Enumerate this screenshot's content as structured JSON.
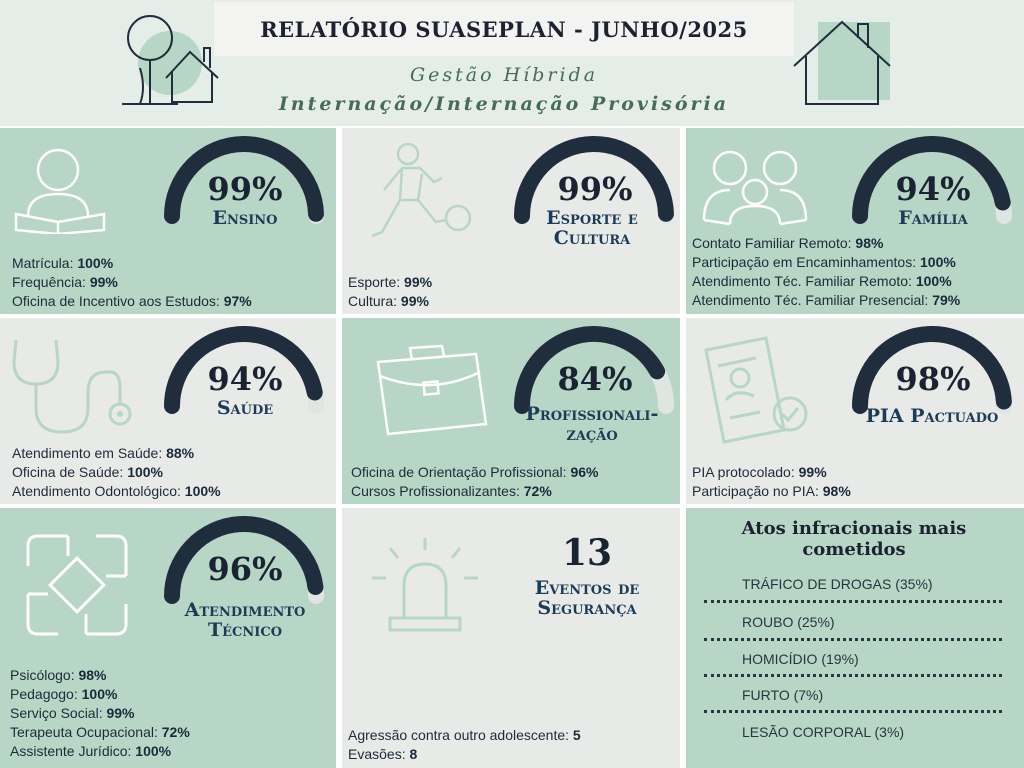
{
  "header": {
    "title": "RELATÓRIO SUASEPLAN - JUNHO/2025",
    "subtitle1": "Gestão Híbrida",
    "subtitle2": "Internação/Internação Provisória"
  },
  "colors": {
    "gauge_fill": "#1f2d3d",
    "gauge_track": "#dfe6e2",
    "green_bg": "#b7d6c6",
    "light_bg": "#e8eae8",
    "label": "#1c3b57"
  },
  "cards": {
    "ensino": {
      "icon": "reading-person-icon",
      "pct": "99%",
      "value": 0.99,
      "label": "Ensino",
      "lines": [
        {
          "k": "Matrícula: ",
          "v": "100%"
        },
        {
          "k": "Frequência: ",
          "v": "99%"
        },
        {
          "k": "Oficina de Incentivo aos Estudos: ",
          "v": "97%"
        }
      ]
    },
    "esporte": {
      "icon": "soccer-player-icon",
      "pct": "99%",
      "value": 0.99,
      "label1": "Esporte e",
      "label2": "Cultura",
      "lines": [
        {
          "k": "Esporte: ",
          "v": "99%"
        },
        {
          "k": "Cultura: ",
          "v": "99%"
        }
      ]
    },
    "familia": {
      "icon": "family-icon",
      "pct": "94%",
      "value": 0.94,
      "label": "Família",
      "lines": [
        {
          "k": "Contato Familiar Remoto: ",
          "v": "98%"
        },
        {
          "k": "Participação em Encaminhamentos: ",
          "v": "100%"
        },
        {
          "k": "Atendimento Téc. Familiar Remoto: ",
          "v": "100%"
        },
        {
          "k": "Atendimento Téc. Familiar Presencial: ",
          "v": "79%"
        }
      ]
    },
    "saude": {
      "icon": "stethoscope-icon",
      "pct": "94%",
      "value": 0.94,
      "label": "Saúde",
      "lines": [
        {
          "k": "Atendimento em Saúde: ",
          "v": "88%"
        },
        {
          "k": "Oficina de Saúde: ",
          "v": "100%"
        },
        {
          "k": "Atendimento Odontológico: ",
          "v": "100%"
        }
      ]
    },
    "prof": {
      "icon": "briefcase-icon",
      "pct": "84%",
      "value": 0.84,
      "label1": "Profissionali-",
      "label2": "zação",
      "lines": [
        {
          "k": "Oficina de Orientação Profissional: ",
          "v": "96%"
        },
        {
          "k": "Cursos Profissionalizantes: ",
          "v": "72%"
        }
      ]
    },
    "pia": {
      "icon": "document-approved-icon",
      "pct": "98%",
      "value": 0.98,
      "label": "PIA Pactuado",
      "lines": [
        {
          "k": "PIA protocolado: ",
          "v": "99%"
        },
        {
          "k": "Participação no PIA: ",
          "v": "98%"
        }
      ]
    },
    "tecnico": {
      "icon": "hands-together-icon",
      "pct": "96%",
      "value": 0.96,
      "label1": "Atendimento",
      "label2": "Técnico",
      "lines": [
        {
          "k": "Psicólogo: ",
          "v": "98%"
        },
        {
          "k": "Pedagogo: ",
          "v": "100%"
        },
        {
          "k": "Serviço Social: ",
          "v": "99%"
        },
        {
          "k": "Terapeuta Ocupacional: ",
          "v": "72%"
        },
        {
          "k": "Assistente Jurídico: ",
          "v": "100%"
        }
      ]
    },
    "seguranca": {
      "icon": "siren-icon",
      "count": "13",
      "label1": "Eventos de",
      "label2": "Segurança",
      "lines": [
        {
          "k": "Agressão contra outro adolescente: ",
          "v": "5"
        },
        {
          "k": "Evasões: ",
          "v": "8"
        }
      ]
    }
  },
  "atos": {
    "title1": "Atos infracionais mais",
    "title2": "cometidos",
    "items": [
      "TRÁFICO DE DROGAS (35%)",
      "ROUBO (25%)",
      "HOMICÍDIO (19%)",
      "FURTO (7%)",
      "LESÃO CORPORAL (3%)"
    ]
  }
}
